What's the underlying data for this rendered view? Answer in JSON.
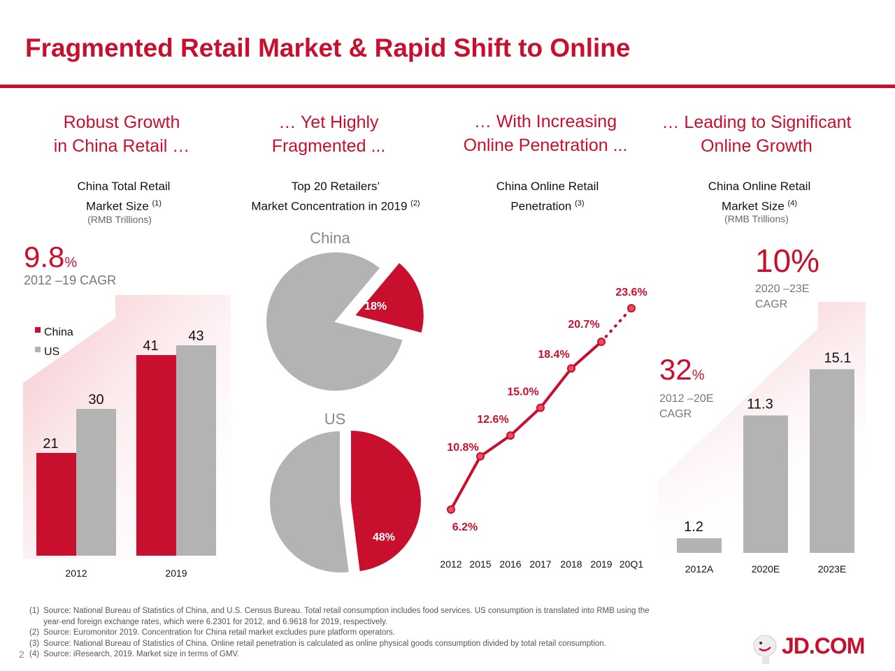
{
  "title": "Fragmented Retail Market & Rapid Shift to Online",
  "columns": [
    {
      "head1": "Robust Growth",
      "head2": "in China Retail …",
      "sub1": "China Total Retail",
      "sub2": "Market Size",
      "note": "(1)",
      "unit": "(RMB Trillions)"
    },
    {
      "head1": "… Yet Highly",
      "head2": "Fragmented ...",
      "sub1": "Top 20 Retailers’",
      "sub2": "Market Concentration in 2019",
      "note": "(2)"
    },
    {
      "head1": "… With Increasing",
      "head2": "Online Penetration ...",
      "sub1": "China Online Retail",
      "sub2": "Penetration",
      "note": "(3)"
    },
    {
      "head1": "… Leading to Significant",
      "head2": "Online Growth",
      "sub1": "China Online Retail",
      "sub2": "Market Size",
      "note": "(4)",
      "unit": "(RMB Trillions)"
    }
  ],
  "callouts": {
    "c1_value": "9.8",
    "c1_pct": "%",
    "c1_label": "2012 –19 CAGR",
    "c4a_value": "10%",
    "c4a_label1": "2020 –23E",
    "c4a_label2": "CAGR",
    "c4b_value": "32",
    "c4b_pct": "%",
    "c4b_label1": "2012 –20E",
    "c4b_label2": "CAGR"
  },
  "colors": {
    "red": "#c8102e",
    "grey": "#b3b3b3",
    "pink": "#f7d2d6"
  },
  "chart_data": [
    {
      "type": "bar",
      "title": "China Total Retail Market Size",
      "ylabel": "RMB Trillions",
      "categories": [
        "2012",
        "2019"
      ],
      "series": [
        {
          "name": "China",
          "values": [
            21,
            41
          ]
        },
        {
          "name": "US",
          "values": [
            30,
            43
          ]
        }
      ],
      "legend": "top-left",
      "ylim": [
        0,
        45
      ]
    },
    {
      "type": "pie",
      "title": "China",
      "slices": [
        {
          "label": "18%",
          "value": 18
        },
        {
          "label": "",
          "value": 82
        }
      ]
    },
    {
      "type": "pie",
      "title": "US",
      "slices": [
        {
          "label": "48%",
          "value": 48
        },
        {
          "label": "",
          "value": 52
        }
      ]
    },
    {
      "type": "line",
      "title": "China Online Retail Penetration",
      "x": [
        "2012",
        "2015",
        "2016",
        "2017",
        "2018",
        "2019",
        "20Q1"
      ],
      "values": [
        6.2,
        10.8,
        12.6,
        15.0,
        18.4,
        20.7,
        23.6
      ],
      "labels": [
        "6.2%",
        "10.8%",
        "12.6%",
        "15.0%",
        "18.4%",
        "20.7%",
        "23.6%"
      ]
    },
    {
      "type": "bar",
      "title": "China Online Retail Market Size",
      "ylabel": "RMB Trillions",
      "categories": [
        "2012A",
        "2020E",
        "2023E"
      ],
      "values": [
        1.2,
        11.3,
        15.1
      ],
      "labels": [
        "1.2",
        "11.3",
        "15.1"
      ],
      "ylim": [
        0,
        16
      ]
    }
  ],
  "footnotes": [
    {
      "n": "(1)",
      "text": "Source: National Bureau of Statistics of China, and U.S. Census Bureau. Total retail consumption includes food services. US consumption is translated into RMB using the"
    },
    {
      "n": "",
      "text": "year-end foreign exchange rates, which were 6.2301 for 2012, and 6.9618 for 2019, respectively."
    },
    {
      "n": "(2)",
      "text": "Source: Euromonitor 2019. Concentration for China retail market excludes pure platform operators."
    },
    {
      "n": "(3)",
      "text": "Source: National Bureau of Statistics of China. Online retail penetration is calculated as online physical goods consumption divided by total retail consumption."
    },
    {
      "n": "(4)",
      "text": "Source: iResearch, 2019. Market size in terms of GMV."
    }
  ],
  "page_number": "2",
  "logo": "JD.COM"
}
